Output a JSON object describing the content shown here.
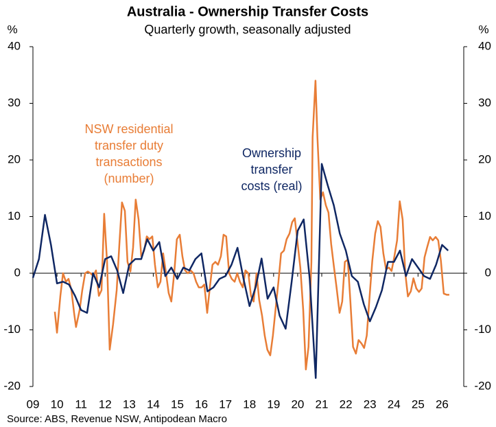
{
  "chart_data": {
    "type": "line",
    "title": "Australia - Ownership Transfer Costs",
    "subtitle": "Quarterly growth, seasonally adjusted",
    "y_unit_label": "%",
    "y2_unit_label": "%",
    "source": "Source: ABS, Revenue NSW, Antipodean Macro",
    "xlim": [
      9,
      26.9
    ],
    "xticks": [
      {
        "value": 9,
        "label": "09"
      },
      10,
      11,
      12,
      13,
      14,
      15,
      16,
      17,
      18,
      19,
      20,
      21,
      22,
      23,
      24,
      25,
      26
    ],
    "ylim": [
      -20,
      40
    ],
    "yticks": [
      -20,
      -10,
      0,
      10,
      20,
      30,
      40
    ],
    "y2lim": [
      -20,
      40
    ],
    "y2ticks": [
      -20,
      -10,
      0,
      10,
      20,
      30,
      40
    ],
    "annotations": [
      {
        "lines": [
          "NSW residential",
          "transfer duty",
          "transactions",
          "(number)"
        ],
        "color": "#E87D36"
      },
      {
        "lines": [
          "Ownership",
          "transfer",
          "costs (real)"
        ],
        "color": "#0F2763"
      }
    ],
    "series": [
      {
        "name": "NSW residential transfer duty transactions (number)",
        "color": "#E87D36",
        "x": [
          9.91,
          10.0,
          10.14,
          10.25,
          10.37,
          10.48,
          10.6,
          10.71,
          10.79,
          10.94,
          11.05,
          11.17,
          11.28,
          11.39,
          11.51,
          11.62,
          11.74,
          11.85,
          11.96,
          12.08,
          12.19,
          12.33,
          12.48,
          12.59,
          12.7,
          12.82,
          12.93,
          13.05,
          13.16,
          13.27,
          13.39,
          13.5,
          13.62,
          13.73,
          13.84,
          13.96,
          14.07,
          14.19,
          14.3,
          14.41,
          14.53,
          14.64,
          14.75,
          14.87,
          14.98,
          15.1,
          15.21,
          15.32,
          15.44,
          15.55,
          15.67,
          15.78,
          15.89,
          16.01,
          16.12,
          16.24,
          16.35,
          16.46,
          16.58,
          16.69,
          16.81,
          16.92,
          17.03,
          17.15,
          17.26,
          17.38,
          17.49,
          17.6,
          17.72,
          17.83,
          17.95,
          18.06,
          18.17,
          18.29,
          18.4,
          18.52,
          18.63,
          18.74,
          18.86,
          18.97,
          19.09,
          19.2,
          19.31,
          19.43,
          19.54,
          19.66,
          19.77,
          19.88,
          20.0,
          20.11,
          20.23,
          20.34,
          20.45,
          20.57,
          20.62,
          20.74,
          20.82,
          20.94,
          21.05,
          21.17,
          21.28,
          21.39,
          21.51,
          21.62,
          21.74,
          21.85,
          21.96,
          22.08,
          22.19,
          22.3,
          22.42,
          22.53,
          22.65,
          22.76,
          22.87,
          22.99,
          23.1,
          23.22,
          23.33,
          23.44,
          23.56,
          23.67,
          23.79,
          23.9,
          24.01,
          24.13,
          24.24,
          24.36,
          24.47,
          24.58,
          24.7,
          24.81,
          24.93,
          25.04,
          25.15,
          25.27,
          25.38,
          25.5,
          25.61,
          25.73,
          25.84,
          25.95,
          26.07,
          26.19,
          26.3
        ],
        "values": [
          -6.8,
          -10.5,
          -4,
          0,
          -1.5,
          -1,
          -3,
          -7,
          -9.5,
          -6.5,
          -3,
          0,
          0.3,
          0,
          -0.5,
          0.5,
          -4,
          -3,
          10.5,
          2,
          -13.5,
          -9,
          -3,
          5,
          12.5,
          11,
          2,
          0.3,
          4.5,
          13,
          9.5,
          3,
          4,
          6.5,
          6,
          6.5,
          1.5,
          -2.5,
          -1.5,
          3.5,
          0,
          -3.5,
          -5,
          0,
          6,
          6.8,
          3,
          0.5,
          0,
          0.5,
          0,
          -1.5,
          -2.5,
          -2.5,
          -2,
          -7,
          -2.5,
          1.5,
          2,
          1.5,
          3,
          6.8,
          6.5,
          0,
          -1,
          -1.5,
          0,
          -1.5,
          -2.5,
          0.5,
          0,
          -4,
          -5,
          0,
          -4.7,
          -7.5,
          -11,
          -13.5,
          -14.5,
          -11,
          -6,
          -1.5,
          3.5,
          4,
          6,
          7,
          9,
          9.7,
          5.2,
          1,
          -6.5,
          -17,
          -13,
          2,
          24,
          34,
          24,
          13,
          14.3,
          12,
          10.7,
          5.2,
          1,
          -2.7,
          -7,
          -5,
          2,
          2.4,
          -5,
          -13,
          -14.2,
          -11.8,
          -12.4,
          -13.2,
          -11,
          -4,
          2.2,
          7,
          9.2,
          8.2,
          3.5,
          0.7,
          1,
          0.4,
          2.8,
          5.8,
          12.7,
          9.5,
          0,
          -4.1,
          -3.2,
          -0.9,
          -2.7,
          -3.3,
          -2.7,
          2.8,
          4.6,
          6.4,
          5.8,
          6.4,
          5.8,
          2.2,
          -3.6,
          -3.8,
          -3.8
        ]
      },
      {
        "name": "Ownership transfer costs (real)",
        "color": "#0F2763",
        "x": [
          9.0,
          9.25,
          9.5,
          9.75,
          10.0,
          10.25,
          10.5,
          10.75,
          11.0,
          11.25,
          11.5,
          11.75,
          12.0,
          12.25,
          12.5,
          12.75,
          13.0,
          13.25,
          13.5,
          13.75,
          14.0,
          14.25,
          14.5,
          14.75,
          15.0,
          15.25,
          15.5,
          15.75,
          16.0,
          16.25,
          16.5,
          16.75,
          17.0,
          17.25,
          17.5,
          17.75,
          18.0,
          18.25,
          18.5,
          18.75,
          19.0,
          19.25,
          19.5,
          19.75,
          20.0,
          20.25,
          20.5,
          20.75,
          21.0,
          21.25,
          21.5,
          21.75,
          22.0,
          22.25,
          22.5,
          22.75,
          23.0,
          23.25,
          23.5,
          23.75,
          24.0,
          24.25,
          24.5,
          24.75,
          25.0,
          25.25,
          25.5,
          25.75,
          26.0,
          26.25
        ],
        "values": [
          -0.8,
          2.5,
          10.3,
          5,
          -1.8,
          -1.5,
          -2,
          -4,
          -6.5,
          -7,
          0,
          -2.5,
          2.5,
          3,
          0.5,
          -3.5,
          1.5,
          2.5,
          2.5,
          6,
          4,
          5.5,
          -0.5,
          1,
          -1,
          1,
          0.5,
          2.5,
          3.5,
          -3.2,
          -2.5,
          -1,
          -0.5,
          1.5,
          4.5,
          -1,
          -5.8,
          -2.5,
          2.6,
          -4.5,
          -2.5,
          -7.5,
          -9.8,
          -1.5,
          7.5,
          9.5,
          -1,
          -18.5,
          19.3,
          15.5,
          12,
          7,
          4,
          -0.5,
          -1.5,
          -5.5,
          -8.5,
          -6,
          -3,
          2,
          2,
          4,
          -0.5,
          2.5,
          1,
          -0.5,
          -1,
          1.5,
          5,
          4
        ]
      }
    ]
  }
}
